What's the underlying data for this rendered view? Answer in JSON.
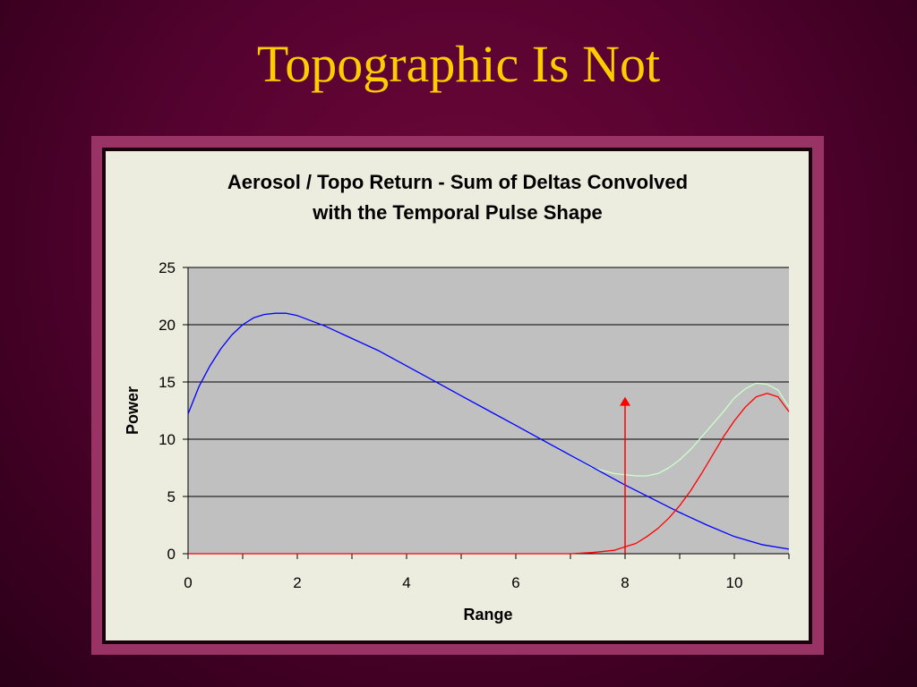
{
  "slide": {
    "title": "Topographic Is Not"
  },
  "colors": {
    "background": "#560230",
    "title": "#ffcc00",
    "frame": "#993366",
    "plot_area": "#c0c0c0",
    "chart_area": "#ededdf"
  },
  "chart_data": {
    "type": "line",
    "title_lines": [
      "Aerosol / Topo Return - Sum of Deltas Convolved",
      "with the Temporal Pulse Shape"
    ],
    "xlabel": "Range",
    "ylabel": "Power",
    "xlim": [
      0,
      11
    ],
    "ylim": [
      0,
      25
    ],
    "x_ticks": [
      0,
      2,
      4,
      6,
      8,
      10
    ],
    "y_ticks": [
      0,
      5,
      10,
      15,
      20,
      25
    ],
    "grid": true,
    "legend": "none",
    "series": [
      {
        "color": "#0000ff",
        "x": [
          0,
          0.2,
          0.4,
          0.6,
          0.8,
          1.0,
          1.2,
          1.4,
          1.6,
          1.8,
          2.0,
          2.5,
          3.0,
          3.5,
          4.0,
          4.5,
          5.0,
          5.5,
          6.0,
          6.5,
          7.0,
          7.5,
          8.0,
          8.5,
          9.0,
          9.5,
          10.0,
          10.5,
          11.0
        ],
        "y": [
          12.2,
          14.6,
          16.4,
          17.9,
          19.1,
          20.0,
          20.6,
          20.9,
          21.0,
          21.0,
          20.8,
          19.9,
          18.8,
          17.7,
          16.4,
          15.1,
          13.8,
          12.5,
          11.2,
          9.9,
          8.6,
          7.3,
          6.0,
          4.8,
          3.6,
          2.5,
          1.5,
          0.8,
          0.4
        ]
      },
      {
        "color": "#ff0000",
        "x": [
          0,
          7.0,
          7.4,
          7.8,
          8.0,
          8.2,
          8.4,
          8.6,
          8.8,
          9.0,
          9.2,
          9.4,
          9.6,
          9.8,
          10.0,
          10.2,
          10.4,
          10.6,
          10.8,
          11.0
        ],
        "y": [
          0,
          0,
          0.1,
          0.3,
          0.6,
          0.9,
          1.5,
          2.2,
          3.1,
          4.2,
          5.5,
          7.0,
          8.6,
          10.2,
          11.6,
          12.8,
          13.7,
          14.0,
          13.7,
          12.4
        ]
      },
      {
        "color": "#ccffcc",
        "x": [
          7.0,
          7.4,
          7.8,
          8.0,
          8.2,
          8.4,
          8.6,
          8.8,
          9.0,
          9.2,
          9.4,
          9.6,
          9.8,
          10.0,
          10.2,
          10.4,
          10.6,
          10.8,
          11.0
        ],
        "y": [
          8.6,
          7.5,
          7.0,
          6.9,
          6.8,
          6.8,
          7.0,
          7.5,
          8.2,
          9.1,
          10.2,
          11.3,
          12.4,
          13.6,
          14.4,
          14.9,
          14.8,
          14.3,
          12.8
        ]
      }
    ],
    "annotation_arrow": {
      "x": 8,
      "y_from": 0,
      "y_to": 13.7,
      "color": "#ff0000"
    }
  }
}
